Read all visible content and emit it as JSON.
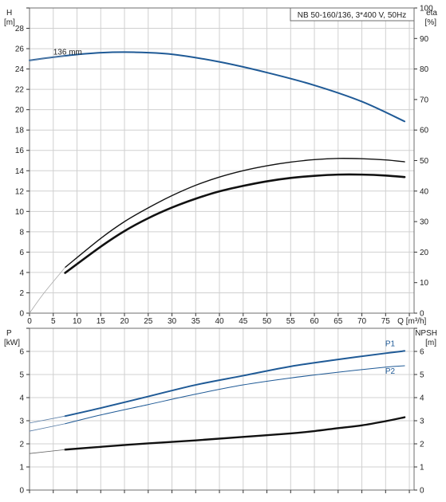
{
  "chart_data": [
    {
      "type": "line",
      "name": "head-efficiency",
      "title": "NB 50-160/136, 3*400 V, 50Hz",
      "xlabel": "Q [m³/h]",
      "ylabel_left_top": "H",
      "ylabel_left_unit": "[m]",
      "ylabel_right_top": "eta",
      "ylabel_right_unit": "[%]",
      "xlim": [
        0,
        81
      ],
      "ylim_left": [
        0,
        30
      ],
      "ylim_right": [
        0,
        100
      ],
      "x_ticks": [
        0,
        5,
        10,
        15,
        20,
        25,
        30,
        35,
        40,
        45,
        50,
        55,
        60,
        65,
        70,
        75
      ],
      "y_left_ticks": [
        0,
        2,
        4,
        6,
        8,
        10,
        12,
        14,
        16,
        18,
        20,
        22,
        24,
        26,
        28
      ],
      "y_right_ticks": [
        0,
        10,
        20,
        30,
        40,
        50,
        60,
        70,
        80,
        90,
        100
      ],
      "grid": true,
      "annotations": [
        {
          "text": "136 mm",
          "x": 5,
          "y": 25.4
        }
      ],
      "series": [
        {
          "name": "",
          "axis": "left",
          "color": "#1f5a96",
          "width": 2,
          "x": [
            0,
            7.5,
            15,
            22,
            30,
            40,
            50,
            60,
            70,
            79
          ],
          "y": [
            24.85,
            25.3,
            25.6,
            25.65,
            25.45,
            24.7,
            23.65,
            22.4,
            20.8,
            18.85
          ]
        },
        {
          "name": "",
          "axis": "left",
          "color": "#5b7fa8",
          "width": 1,
          "x": [
            0,
            7.5
          ],
          "y": [
            24.85,
            25.3
          ]
        },
        {
          "name": "",
          "axis": "right",
          "color": "#111111",
          "width": 1.4,
          "x": [
            7.5,
            15,
            20,
            25,
            30,
            35,
            40,
            45,
            50,
            55,
            60,
            65,
            70,
            75,
            79
          ],
          "y": [
            15,
            24.5,
            30,
            34.5,
            38.5,
            41.9,
            44.6,
            46.7,
            48.3,
            49.5,
            50.3,
            50.7,
            50.6,
            50.2,
            49.6
          ]
        },
        {
          "name": "",
          "axis": "right",
          "color": "#111111",
          "width": 2.6,
          "x": [
            7.5,
            15,
            20,
            25,
            30,
            35,
            40,
            45,
            50,
            55,
            60,
            65,
            70,
            75,
            79
          ],
          "y": [
            13.2,
            21.8,
            26.9,
            31.1,
            34.6,
            37.5,
            39.9,
            41.7,
            43.2,
            44.3,
            45.0,
            45.4,
            45.4,
            45.1,
            44.6
          ]
        },
        {
          "name": "",
          "axis": "right",
          "color": "#aaaaaa",
          "width": 0.8,
          "x": [
            0,
            3,
            7.5
          ],
          "y": [
            0,
            6.5,
            15
          ]
        }
      ]
    },
    {
      "type": "line",
      "name": "power-npsh",
      "title": "",
      "ylabel_left_top": "P",
      "ylabel_left_unit": "[kW]",
      "ylabel_right_top": "NPSH",
      "ylabel_right_unit": "[m]",
      "xlim": [
        0,
        81
      ],
      "ylim_left": [
        0,
        7
      ],
      "ylim_right": [
        0,
        7
      ],
      "y_left_ticks": [
        0,
        1,
        2,
        3,
        4,
        5,
        6
      ],
      "y_right_ticks": [
        0,
        1,
        2,
        3,
        4,
        5,
        6
      ],
      "grid": true,
      "series": [
        {
          "name": "P1",
          "axis": "left",
          "color": "#1f5a96",
          "width": 2,
          "x": [
            7.5,
            15,
            25,
            35,
            45,
            55,
            65,
            75,
            79
          ],
          "y": [
            3.2,
            3.55,
            4.05,
            4.55,
            4.95,
            5.35,
            5.65,
            5.92,
            6.02
          ]
        },
        {
          "name": "P2",
          "axis": "left",
          "color": "#1f5a96",
          "width": 1,
          "x": [
            7.5,
            15,
            25,
            35,
            45,
            55,
            65,
            75,
            79
          ],
          "y": [
            2.87,
            3.25,
            3.7,
            4.15,
            4.55,
            4.85,
            5.1,
            5.32,
            5.38
          ]
        },
        {
          "name": "",
          "axis": "right",
          "color": "#111111",
          "width": 2.4,
          "x": [
            7.5,
            15,
            25,
            35,
            45,
            55,
            60,
            65,
            70,
            75,
            79
          ],
          "y": [
            1.75,
            1.87,
            2.02,
            2.15,
            2.3,
            2.45,
            2.55,
            2.68,
            2.8,
            2.98,
            3.15
          ]
        },
        {
          "name": "",
          "axis": "left",
          "color": "#5b7fa8",
          "width": 0.8,
          "x": [
            0,
            7.5
          ],
          "y": [
            2.9,
            3.2
          ]
        },
        {
          "name": "",
          "axis": "left",
          "color": "#5b7fa8",
          "width": 0.8,
          "x": [
            0,
            7.5
          ],
          "y": [
            2.55,
            2.87
          ]
        },
        {
          "name": "",
          "axis": "right",
          "color": "#666666",
          "width": 0.8,
          "x": [
            0,
            7.5
          ],
          "y": [
            1.58,
            1.75
          ]
        }
      ]
    }
  ]
}
